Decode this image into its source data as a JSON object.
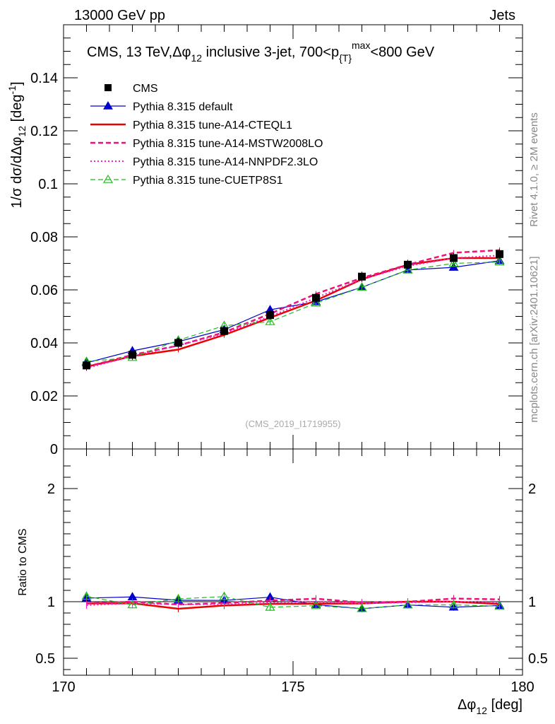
{
  "header": {
    "left": "13000 GeV pp",
    "right": "Jets"
  },
  "side_labels": {
    "rivet": "Rivet 4.1.0, ≥ 2M events",
    "mcplots": "mcplots.cern.ch [arXiv:2401.10621]"
  },
  "watermark": "(CMS_2019_I1719955)",
  "chart_data": {
    "type": "line",
    "title": "CMS, 13 TeV, Δφ₁₂ inclusive 3-jet, 700<p_T^max<800 GeV",
    "title_parts": {
      "pre": "CMS, 13 TeV,",
      "phi": "Δφ",
      "sub": "12",
      "mid": " inclusive 3-jet, 700<p",
      "sub2": "{T}",
      "sup": "max",
      "post": "<800 GeV"
    },
    "xlabel": "Δφ₁₂ [deg]",
    "xlabel_parts": {
      "main": "Δφ",
      "sub": "12",
      "unit": " [deg]"
    },
    "ylabel": "1/σ dσ/dΔφ₁₂ [deg⁻¹]",
    "ylabel_parts": {
      "frac": "1/σ dσ/dΔφ",
      "sub": "12",
      "unit": " [deg",
      "sup": "-1",
      "close": "]"
    },
    "ratio_ylabel": "Ratio to CMS",
    "xlim": [
      170,
      180
    ],
    "ylim": [
      0,
      0.16
    ],
    "ratio_ylim": [
      0.35,
      2.35
    ],
    "x_ticks": [
      "170",
      "175",
      "180"
    ],
    "y_ticks": [
      "0",
      "0.02",
      "0.04",
      "0.06",
      "0.08",
      "0.1",
      "0.12",
      "0.14"
    ],
    "ratio_ticks": [
      "0.5",
      "1",
      "2"
    ],
    "x": [
      170.5,
      171.5,
      172.5,
      173.5,
      174.5,
      175.5,
      176.5,
      177.5,
      178.5,
      179.5
    ],
    "data": {
      "name": "CMS",
      "values": [
        0.0315,
        0.0355,
        0.04,
        0.0445,
        0.0505,
        0.057,
        0.065,
        0.0695,
        0.072,
        0.0735
      ]
    },
    "series": [
      {
        "name": "Pythia 8.315 default",
        "color": "#0000cc",
        "style": "solid",
        "width": 1.2,
        "marker": "triangle",
        "values": [
          0.0325,
          0.037,
          0.0405,
          0.045,
          0.0525,
          0.0555,
          0.061,
          0.0675,
          0.0685,
          0.071
        ]
      },
      {
        "name": "Pythia 8.315 tune-A14-CTEQL1",
        "color": "#ee0000",
        "style": "solid",
        "width": 2.5,
        "marker": "none",
        "values": [
          0.031,
          0.035,
          0.0375,
          0.043,
          0.0495,
          0.056,
          0.064,
          0.0695,
          0.072,
          0.072
        ]
      },
      {
        "name": "Pythia 8.315 tune-A14-MSTW2008LO",
        "color": "#ee1177",
        "style": "dashed",
        "width": 2.5,
        "marker": "none",
        "values": [
          0.031,
          0.0355,
          0.039,
          0.044,
          0.051,
          0.0585,
          0.0645,
          0.0695,
          0.074,
          0.075
        ]
      },
      {
        "name": "Pythia 8.315 tune-A14-NNPDF2.3LO",
        "color": "#ee22cc",
        "style": "dotted",
        "width": 2,
        "marker": "none",
        "values": [
          0.0305,
          0.035,
          0.039,
          0.0435,
          0.05,
          0.057,
          0.064,
          0.069,
          0.072,
          0.073
        ]
      },
      {
        "name": "Pythia 8.315 tune-CUETP8S1",
        "color": "#22bb22",
        "style": "dashed",
        "width": 1.2,
        "marker": "open-triangle",
        "values": [
          0.033,
          0.0345,
          0.041,
          0.0465,
          0.048,
          0.055,
          0.061,
          0.0675,
          0.07,
          0.0705
        ]
      }
    ]
  }
}
